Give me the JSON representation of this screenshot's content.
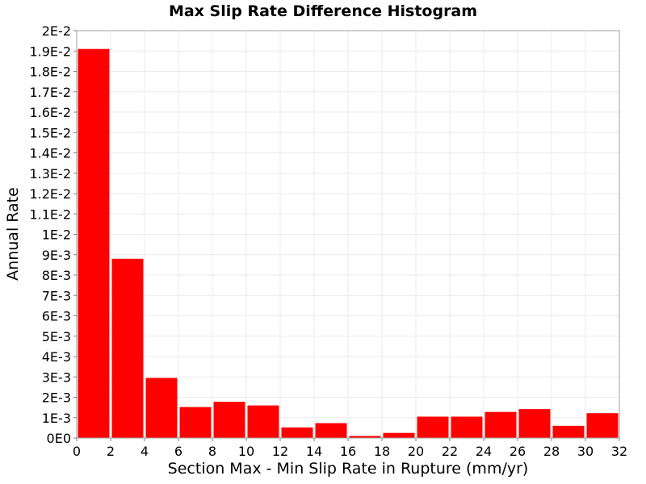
{
  "chart_data": {
    "type": "bar",
    "title": "Max Slip Rate Difference Histogram",
    "xlabel": "Section Max - Min Slip Rate in Rupture (mm/yr)",
    "ylabel": "Annual Rate",
    "xlim": [
      0,
      32
    ],
    "ylim": [
      0,
      0.02
    ],
    "bin_width": 2,
    "x_ticks": [
      0,
      2,
      4,
      6,
      8,
      10,
      12,
      14,
      16,
      18,
      20,
      22,
      24,
      26,
      28,
      30,
      32
    ],
    "y_ticks": [
      {
        "value": 0,
        "label": "0E0"
      },
      {
        "value": 0.001,
        "label": "1E-3"
      },
      {
        "value": 0.002,
        "label": "2E-3"
      },
      {
        "value": 0.003,
        "label": "3E-3"
      },
      {
        "value": 0.004,
        "label": "4E-3"
      },
      {
        "value": 0.005,
        "label": "5E-3"
      },
      {
        "value": 0.006,
        "label": "6E-3"
      },
      {
        "value": 0.007,
        "label": "7E-3"
      },
      {
        "value": 0.008,
        "label": "8E-3"
      },
      {
        "value": 0.009,
        "label": "9E-3"
      },
      {
        "value": 0.01,
        "label": "1E-2"
      },
      {
        "value": 0.011,
        "label": "1.1E-2"
      },
      {
        "value": 0.012,
        "label": "1.2E-2"
      },
      {
        "value": 0.013,
        "label": "1.3E-2"
      },
      {
        "value": 0.014,
        "label": "1.4E-2"
      },
      {
        "value": 0.015,
        "label": "1.5E-2"
      },
      {
        "value": 0.016,
        "label": "1.6E-2"
      },
      {
        "value": 0.017,
        "label": "1.7E-2"
      },
      {
        "value": 0.018,
        "label": "1.8E-2"
      },
      {
        "value": 0.019,
        "label": "1.9E-2"
      },
      {
        "value": 0.02,
        "label": "2E-2"
      }
    ],
    "bins": [
      {
        "x": 1,
        "value": 0.0191
      },
      {
        "x": 3,
        "value": 0.0088
      },
      {
        "x": 5,
        "value": 0.00295
      },
      {
        "x": 7,
        "value": 0.00152
      },
      {
        "x": 9,
        "value": 0.00178
      },
      {
        "x": 11,
        "value": 0.0016
      },
      {
        "x": 13,
        "value": 0.00052
      },
      {
        "x": 15,
        "value": 0.00073
      },
      {
        "x": 17,
        "value": 0.0001
      },
      {
        "x": 19,
        "value": 0.00025
      },
      {
        "x": 21,
        "value": 0.00105
      },
      {
        "x": 23,
        "value": 0.00105
      },
      {
        "x": 25,
        "value": 0.00128
      },
      {
        "x": 27,
        "value": 0.00142
      },
      {
        "x": 29,
        "value": 0.0006
      },
      {
        "x": 31,
        "value": 0.00122
      }
    ],
    "bar_color": "#ff0000",
    "grid": true,
    "grid_color": "#ebebeb",
    "legend": "none"
  }
}
